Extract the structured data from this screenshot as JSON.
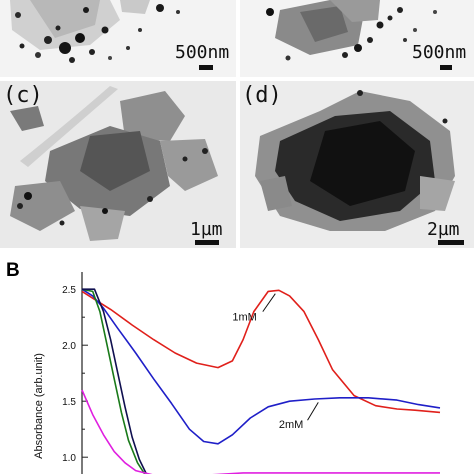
{
  "panel_a": {
    "scale": "500nm"
  },
  "panel_b": {
    "scale": "500nm"
  },
  "panel_c": {
    "label": "(c)",
    "scale": "1µm"
  },
  "panel_d": {
    "label": "(d)",
    "scale": "2µm"
  },
  "figure_b": {
    "letter": "B",
    "ylabel": "Absorbance (arb.unit)",
    "yticks": [
      "2.5",
      "2.0",
      "1.5",
      "1.0"
    ],
    "annotations": [
      "1mM",
      "2mM"
    ]
  },
  "chart_data": {
    "type": "line",
    "title": "",
    "xlabel": "",
    "ylabel": "Absorbance (arb.unit)",
    "ylim": [
      0.85,
      2.6
    ],
    "x_range": [
      0,
      1
    ],
    "grid": false,
    "series": [
      {
        "name": "1mM",
        "color": "#e0201b",
        "x": [
          0.0,
          0.03,
          0.08,
          0.14,
          0.2,
          0.26,
          0.32,
          0.38,
          0.42,
          0.45,
          0.48,
          0.52,
          0.55,
          0.58,
          0.62,
          0.66,
          0.7,
          0.76,
          0.82,
          0.88,
          0.93,
          1.0
        ],
        "y": [
          2.48,
          2.42,
          2.32,
          2.18,
          2.05,
          1.93,
          1.84,
          1.8,
          1.86,
          2.05,
          2.3,
          2.48,
          2.49,
          2.44,
          2.3,
          2.05,
          1.78,
          1.55,
          1.46,
          1.43,
          1.42,
          1.4
        ]
      },
      {
        "name": "2mM",
        "color": "#1f1fc8",
        "x": [
          0.0,
          0.03,
          0.06,
          0.1,
          0.15,
          0.2,
          0.25,
          0.3,
          0.34,
          0.38,
          0.42,
          0.47,
          0.52,
          0.58,
          0.65,
          0.72,
          0.8,
          0.88,
          0.94,
          1.0
        ],
        "y": [
          2.5,
          2.44,
          2.33,
          2.15,
          1.93,
          1.7,
          1.48,
          1.25,
          1.14,
          1.12,
          1.2,
          1.35,
          1.45,
          1.5,
          1.52,
          1.53,
          1.53,
          1.51,
          1.47,
          1.44
        ]
      },
      {
        "name": "",
        "color": "#1a7a1a",
        "x": [
          0.0,
          0.03,
          0.05,
          0.07,
          0.09,
          0.11,
          0.13,
          0.155,
          0.175
        ],
        "y": [
          2.5,
          2.48,
          2.3,
          2.0,
          1.7,
          1.4,
          1.15,
          0.95,
          0.85
        ]
      },
      {
        "name": "",
        "color": "#101050",
        "x": [
          0.0,
          0.035,
          0.06,
          0.08,
          0.1,
          0.12,
          0.14,
          0.16,
          0.18
        ],
        "y": [
          2.5,
          2.5,
          2.3,
          2.05,
          1.75,
          1.45,
          1.18,
          0.98,
          0.85
        ]
      },
      {
        "name": "",
        "color": "#e020e0",
        "x": [
          0.0,
          0.03,
          0.06,
          0.09,
          0.12,
          0.15,
          0.2,
          0.25,
          0.3,
          0.35,
          0.45,
          0.6,
          0.8,
          1.0
        ],
        "y": [
          1.6,
          1.38,
          1.2,
          1.05,
          0.95,
          0.88,
          0.84,
          0.82,
          0.82,
          0.84,
          0.86,
          0.86,
          0.86,
          0.86
        ]
      }
    ]
  }
}
